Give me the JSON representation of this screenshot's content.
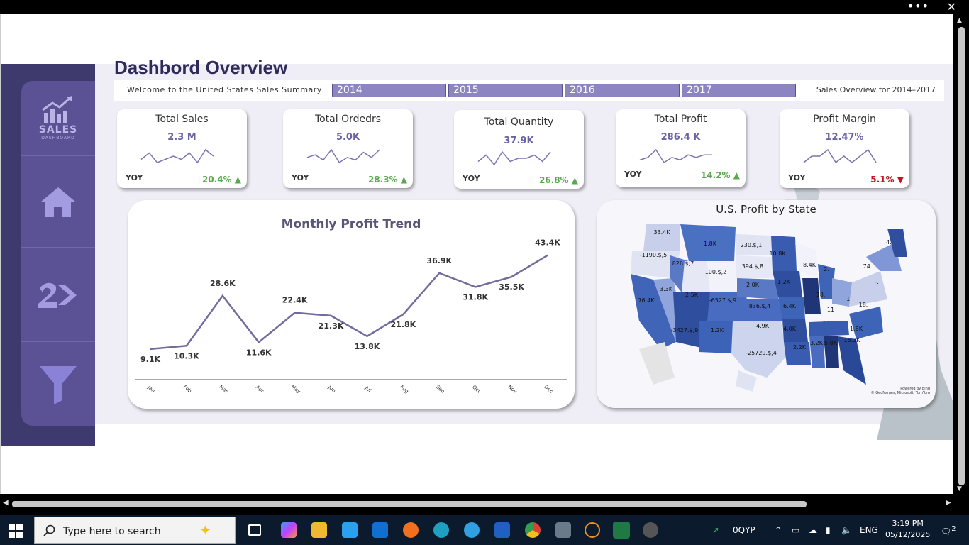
{
  "window": {
    "menu_dots": "•••",
    "close": "✕"
  },
  "dashboard": {
    "title": "Dashbord Overview",
    "welcome": "Welcome to the United States Sales Summary",
    "years": [
      "2014",
      "2015",
      "2016",
      "2017"
    ],
    "overview": "Sales Overview for 2014–2017",
    "logo": {
      "text": "SALES",
      "sub": "DASHBOARD"
    }
  },
  "sidebar": {
    "items": [
      {
        "icon": "sales-logo-icon"
      },
      {
        "icon": "home-icon"
      },
      {
        "icon": "arrow-two-icon"
      },
      {
        "icon": "filter-icon"
      }
    ]
  },
  "kpis": [
    {
      "title": "Total Sales",
      "value": "2.3 M",
      "yoy": "YOY",
      "change": "20.4%",
      "dir": "up",
      "spark": [
        5,
        7,
        4,
        5,
        6,
        5,
        7,
        4,
        8,
        6
      ]
    },
    {
      "title": "Total Ordedrs",
      "value": "5.0K",
      "yoy": "YOY",
      "change": "28.3%",
      "dir": "up",
      "spark": [
        5,
        6,
        4,
        8,
        3,
        5,
        4,
        7,
        5,
        8
      ]
    },
    {
      "title": "Total Quantity",
      "value": "37.9K",
      "yoy": "YOY",
      "change": "26.8%",
      "dir": "up",
      "spark": [
        4,
        6,
        3,
        7,
        4,
        5,
        5,
        6,
        4,
        7
      ]
    },
    {
      "title": "Total Profit",
      "value": "286.4 K",
      "yoy": "YOY",
      "change": "14.2%",
      "dir": "up",
      "spark": [
        4,
        5,
        8,
        3,
        5,
        4,
        6,
        5,
        6,
        6
      ]
    },
    {
      "title": "Profit Margin",
      "value": "12.47%",
      "yoy": "YOY",
      "change": "5.1%",
      "dir": "down",
      "spark": [
        4,
        5,
        5,
        6,
        4,
        5,
        4,
        5,
        6,
        4
      ]
    }
  ],
  "chart_data": {
    "type": "line",
    "title": "Monthly Profit  Trend",
    "categories": [
      "Jan",
      "Feb",
      "Mar",
      "Apr",
      "May",
      "Jun",
      "Jul",
      "Aug",
      "Sep",
      "Oct",
      "Nov",
      "Dec"
    ],
    "values": [
      9.1,
      10.3,
      28.6,
      11.6,
      22.4,
      21.3,
      13.8,
      21.8,
      36.9,
      31.8,
      35.5,
      43.4
    ],
    "labels": [
      "9.1K",
      "10.3K",
      "28.6K",
      "11.6K",
      "22.4K",
      "21.3K",
      "13.8K",
      "21.8K",
      "36.9K",
      "31.8K",
      "35.5K",
      "43.4K"
    ],
    "ylim": [
      0,
      48
    ],
    "color": "#726c9e"
  },
  "map": {
    "title": "U.S. Profit by State",
    "credit_line1": "Powered by Bing",
    "credit_line2": "© GeoNames, Microsoft, TomTom",
    "labels": [
      "33.4K",
      "-1190.$,5",
      "1.8K",
      "230.$,1",
      "10.8K",
      "4.",
      "826.$,7",
      "100.$,2",
      "394.$,8",
      "8.4K",
      "2.",
      "74.",
      "3.3K",
      "2.5K",
      "2.0K",
      "1.2K",
      "-.",
      "76.4K",
      "-6527.$,9",
      "836.$,4",
      "18.",
      "6.4K",
      "1.",
      "11",
      "18.",
      "-3427.$,9",
      "1.2K",
      "4.9K",
      "4.0K",
      "-.",
      "1.8K",
      "-25729.$,4",
      "2.2K",
      "3.2K",
      "5.8K",
      "16.3K",
      "."
    ]
  },
  "taskbar": {
    "search_placeholder": "Type here to search",
    "stock": "0QYP",
    "lang": "ENG",
    "time": "3:19 PM",
    "date": "05/12/2025",
    "notifications": "2"
  }
}
